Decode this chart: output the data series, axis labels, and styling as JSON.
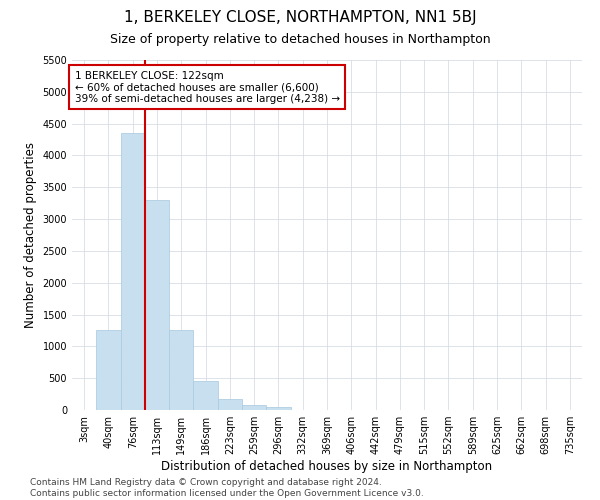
{
  "title": "1, BERKELEY CLOSE, NORTHAMPTON, NN1 5BJ",
  "subtitle": "Size of property relative to detached houses in Northampton",
  "xlabel": "Distribution of detached houses by size in Northampton",
  "ylabel": "Number of detached properties",
  "bar_color": "#c8dff0",
  "bar_edge_color": "#a8c8e0",
  "grid_color": "#d0d8e0",
  "background_color": "#ffffff",
  "annotation_box_color": "#cc0000",
  "vline_color": "#cc0000",
  "categories": [
    "3sqm",
    "40sqm",
    "76sqm",
    "113sqm",
    "149sqm",
    "186sqm",
    "223sqm",
    "259sqm",
    "296sqm",
    "332sqm",
    "369sqm",
    "406sqm",
    "442sqm",
    "479sqm",
    "515sqm",
    "552sqm",
    "589sqm",
    "625sqm",
    "662sqm",
    "698sqm",
    "735sqm"
  ],
  "values": [
    0,
    1250,
    4350,
    3300,
    1250,
    450,
    175,
    75,
    50,
    0,
    0,
    0,
    0,
    0,
    0,
    0,
    0,
    0,
    0,
    0,
    0
  ],
  "property_label": "1 BERKELEY CLOSE: 122sqm",
  "annotation_line1": "← 60% of detached houses are smaller (6,600)",
  "annotation_line2": "39% of semi-detached houses are larger (4,238) →",
  "vline_x_index": 3,
  "ylim": [
    0,
    5500
  ],
  "yticks": [
    0,
    500,
    1000,
    1500,
    2000,
    2500,
    3000,
    3500,
    4000,
    4500,
    5000,
    5500
  ],
  "footer_line1": "Contains HM Land Registry data © Crown copyright and database right 2024.",
  "footer_line2": "Contains public sector information licensed under the Open Government Licence v3.0.",
  "title_fontsize": 11,
  "subtitle_fontsize": 9,
  "axis_label_fontsize": 8.5,
  "tick_fontsize": 7,
  "annotation_fontsize": 7.5,
  "footer_fontsize": 6.5
}
